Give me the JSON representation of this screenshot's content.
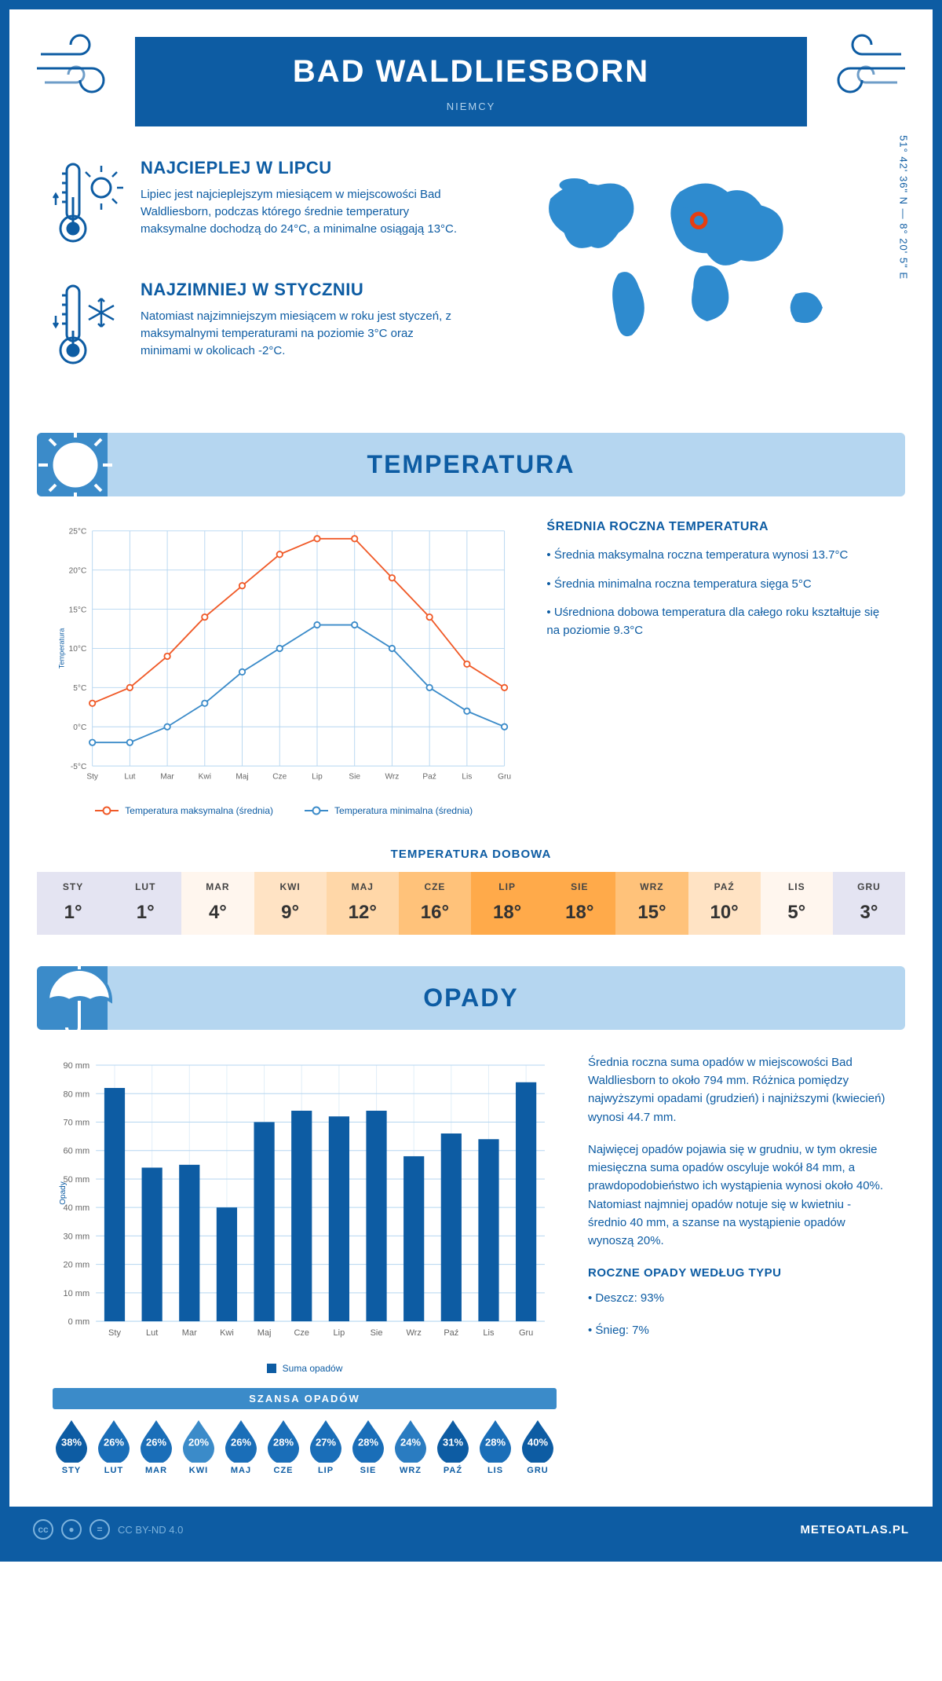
{
  "header": {
    "title": "BAD WALDLIESBORN",
    "country": "NIEMCY"
  },
  "coords": "51° 42' 36\" N — 8° 20' 5\" E",
  "colors": {
    "primary": "#0d5ca3",
    "light": "#b5d6f0",
    "accent": "#3b8bc9",
    "temp_max_line": "#f05a28",
    "temp_min_line": "#3b8bc9",
    "bar_fill": "#0d5ca3",
    "marker": "#e63e11"
  },
  "facts": {
    "warm": {
      "title": "NAJCIEPLEJ W LIPCU",
      "text": "Lipiec jest najcieplejszym miesiącem w miejscowości Bad Waldliesborn, podczas którego średnie temperatury maksymalne dochodzą do 24°C, a minimalne osiągają 13°C."
    },
    "cold": {
      "title": "NAJZIMNIEJ W STYCZNIU",
      "text": "Natomiast najzimniejszym miesiącem w roku jest styczeń, z maksymalnymi temperaturami na poziomie 3°C oraz minimami w okolicach -2°C."
    }
  },
  "temperature": {
    "banner": "TEMPERATURA",
    "side_title": "ŚREDNIA ROCZNA TEMPERATURA",
    "side": [
      "• Średnia maksymalna roczna temperatura wynosi 13.7°C",
      "• Średnia minimalna roczna temperatura sięga 5°C",
      "• Uśredniona dobowa temperatura dla całego roku kształtuje się na poziomie 9.3°C"
    ],
    "chart": {
      "type": "line",
      "y_label": "Temperatura",
      "months": [
        "Sty",
        "Lut",
        "Mar",
        "Kwi",
        "Maj",
        "Cze",
        "Lip",
        "Sie",
        "Wrz",
        "Paź",
        "Lis",
        "Gru"
      ],
      "ylim": [
        -5,
        25
      ],
      "ytick_step": 5,
      "ytick_suffix": "°C",
      "series": [
        {
          "name": "Temperatura maksymalna (średnia)",
          "color": "#f05a28",
          "values": [
            3,
            5,
            9,
            14,
            18,
            22,
            24,
            24,
            19,
            14,
            8,
            5
          ]
        },
        {
          "name": "Temperatura minimalna (średnia)",
          "color": "#3b8bc9",
          "values": [
            -2,
            -2,
            0,
            3,
            7,
            10,
            13,
            13,
            10,
            5,
            2,
            0
          ]
        }
      ],
      "grid_color": "#b5d6f0",
      "background": "#ffffff",
      "line_width": 2,
      "marker_radius": 4
    },
    "daily": {
      "title": "TEMPERATURA DOBOWA",
      "months": [
        "STY",
        "LUT",
        "MAR",
        "KWI",
        "MAJ",
        "CZE",
        "LIP",
        "SIE",
        "WRZ",
        "PAŹ",
        "LIS",
        "GRU"
      ],
      "values": [
        "1°",
        "1°",
        "4°",
        "9°",
        "12°",
        "16°",
        "18°",
        "18°",
        "15°",
        "10°",
        "5°",
        "3°"
      ],
      "cell_colors": [
        "#e4e4f2",
        "#e4e4f2",
        "#fff6ee",
        "#ffe3c4",
        "#ffd7a8",
        "#ffc27a",
        "#ffaa4a",
        "#ffaa4a",
        "#ffc27a",
        "#ffe3c4",
        "#fff6ee",
        "#e4e4f2"
      ]
    }
  },
  "precipitation": {
    "banner": "OPADY",
    "chart": {
      "type": "bar",
      "y_label": "Opady",
      "months": [
        "Sty",
        "Lut",
        "Mar",
        "Kwi",
        "Maj",
        "Cze",
        "Lip",
        "Sie",
        "Wrz",
        "Paź",
        "Lis",
        "Gru"
      ],
      "values": [
        82,
        54,
        55,
        40,
        70,
        74,
        72,
        74,
        58,
        66,
        64,
        84
      ],
      "bar_color": "#0d5ca3",
      "ylim": [
        0,
        90
      ],
      "ytick_step": 10,
      "ytick_suffix": " mm",
      "grid_color": "#b5d6f0",
      "legend": "Suma opadów",
      "bar_width": 0.55
    },
    "text": [
      "Średnia roczna suma opadów w miejscowości Bad Waldliesborn to około 794 mm. Różnica pomiędzy najwyższymi opadami (grudzień) i najniższymi (kwiecień) wynosi 44.7 mm.",
      "Najwięcej opadów pojawia się w grudniu, w tym okresie miesięczna suma opadów oscyluje wokół 84 mm, a prawdopodobieństwo ich wystąpienia wynosi około 40%. Natomiast najmniej opadów notuje się w kwietniu - średnio 40 mm, a szanse na wystąpienie opadów wynoszą 20%."
    ],
    "by_type_title": "ROCZNE OPADY WEDŁUG TYPU",
    "by_type": [
      "• Deszcz: 93%",
      "• Śnieg: 7%"
    ],
    "chance": {
      "title": "SZANSA OPADÓW",
      "months": [
        "STY",
        "LUT",
        "MAR",
        "KWI",
        "MAJ",
        "CZE",
        "LIP",
        "SIE",
        "WRZ",
        "PAŹ",
        "LIS",
        "GRU"
      ],
      "pct": [
        "38%",
        "26%",
        "26%",
        "20%",
        "26%",
        "28%",
        "27%",
        "28%",
        "24%",
        "31%",
        "28%",
        "40%"
      ],
      "colors": [
        "#0d5ca3",
        "#1a6eb8",
        "#1a6eb8",
        "#3b8bc9",
        "#1a6eb8",
        "#1a6eb8",
        "#1a6eb8",
        "#1a6eb8",
        "#2a7cc1",
        "#0d5ca3",
        "#1a6eb8",
        "#0d5ca3"
      ]
    }
  },
  "footer": {
    "license": "CC BY-ND 4.0",
    "site": "METEOATLAS.PL"
  }
}
